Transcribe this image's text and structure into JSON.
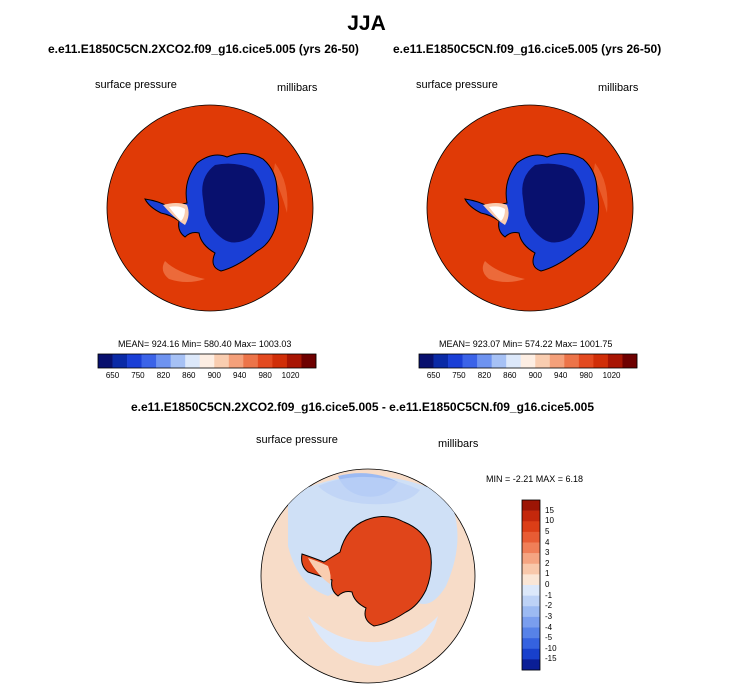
{
  "season": "JJA",
  "colors": {
    "ice_low": "#08106e",
    "ice_mid": "#1a3fd6",
    "ocean": "#e03a06",
    "coast": "#000000",
    "diff_ocean": "#f7dcc8",
    "diff_north": "#cfe0f6",
    "diff_land": "#e0451a"
  },
  "panels": [
    {
      "title": "e.e11.E1850C5CN.2XCO2.f09_g16.cice5.005 (yrs 26-50)",
      "left_label": "surface pressure",
      "right_label": "millibars",
      "stats": "MEAN= 924.16   Min= 580.40   Max= 1003.03"
    },
    {
      "title": "e.e11.E1850C5CN.f09_g16.cice5.005 (yrs 26-50)",
      "left_label": "surface pressure",
      "right_label": "millibars",
      "stats": "MEAN= 923.07   Min= 574.22   Max= 1001.75"
    }
  ],
  "diff_panel": {
    "title": "e.e11.E1850C5CN.2XCO2.f09_g16.cice5.005 - e.e11.E1850C5CN.f09_g16.cice5.005",
    "left_label": "surface pressure",
    "right_label": "millibars",
    "stats": "MIN =  -2.21 MAX =   6.18"
  },
  "chart_data": [
    {
      "type": "heatmap",
      "projection": "south-polar-stereographic",
      "title": "e.e11.E1850C5CN.2XCO2.f09_g16.cice5.005 (yrs 26-50)",
      "variable": "surface pressure",
      "units": "millibars",
      "mean": 924.16,
      "min": 580.4,
      "max": 1003.03,
      "colorbar": {
        "orientation": "horizontal",
        "tick_labels": [
          "650",
          "750",
          "820",
          "860",
          "900",
          "940",
          "980",
          "1020"
        ],
        "colors": [
          "#08106e",
          "#0a2aa6",
          "#1a3fd6",
          "#3b63e8",
          "#6e93f0",
          "#a6c1f5",
          "#dce8fa",
          "#fdeee3",
          "#f9cdb0",
          "#f4a07a",
          "#ec7449",
          "#e34a20",
          "#d02e08",
          "#a81503",
          "#6e0000"
        ]
      }
    },
    {
      "type": "heatmap",
      "projection": "south-polar-stereographic",
      "title": "e.e11.E1850C5CN.f09_g16.cice5.005 (yrs 26-50)",
      "variable": "surface pressure",
      "units": "millibars",
      "mean": 923.07,
      "min": 574.22,
      "max": 1001.75,
      "colorbar": {
        "orientation": "horizontal",
        "tick_labels": [
          "650",
          "750",
          "820",
          "860",
          "900",
          "940",
          "980",
          "1020"
        ],
        "colors": [
          "#08106e",
          "#0a2aa6",
          "#1a3fd6",
          "#3b63e8",
          "#6e93f0",
          "#a6c1f5",
          "#dce8fa",
          "#fdeee3",
          "#f9cdb0",
          "#f4a07a",
          "#ec7449",
          "#e34a20",
          "#d02e08",
          "#a81503",
          "#6e0000"
        ]
      }
    },
    {
      "type": "heatmap",
      "projection": "south-polar-stereographic",
      "title": "e.e11.E1850C5CN.2XCO2.f09_g16.cice5.005 - e.e11.E1850C5CN.f09_g16.cice5.005",
      "variable": "surface pressure",
      "units": "millibars",
      "min": -2.21,
      "max": 6.18,
      "colorbar": {
        "orientation": "vertical",
        "tick_labels": [
          "15",
          "10",
          "5",
          "4",
          "3",
          "2",
          "1",
          "0",
          "-1",
          "-2",
          "-3",
          "-4",
          "-5",
          "-10",
          "-15"
        ],
        "colors": [
          "#9c1505",
          "#c4280c",
          "#dc3e17",
          "#e85c34",
          "#f07f58",
          "#f5a582",
          "#f8c8ab",
          "#fae6d6",
          "#dce8fa",
          "#bdd2f6",
          "#9cbaf2",
          "#7a9eee",
          "#5782e8",
          "#3562e0",
          "#1840cc",
          "#0a1e96"
        ]
      }
    }
  ]
}
